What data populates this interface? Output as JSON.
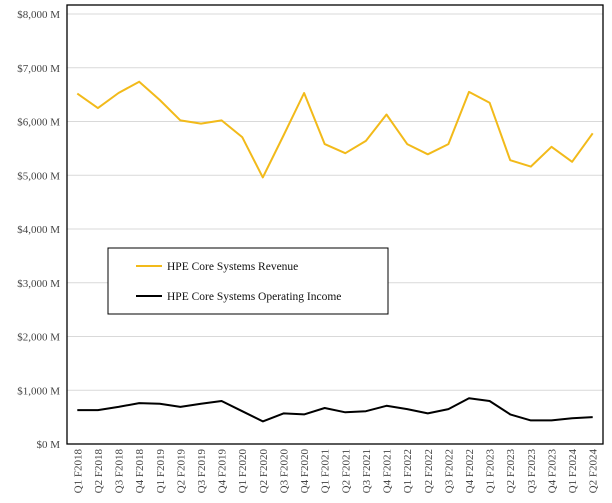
{
  "chart_data": {
    "type": "line",
    "title": "",
    "xlabel": "",
    "ylabel": "",
    "ylim": [
      0,
      8000
    ],
    "y_ticks": [
      "$0 M",
      "$1,000 M",
      "$2,000 M",
      "$3,000 M",
      "$4,000 M",
      "$5,000 M",
      "$6,000 M",
      "$7,000 M",
      "$8,000 M"
    ],
    "y_tick_values": [
      0,
      1000,
      2000,
      3000,
      4000,
      5000,
      6000,
      7000,
      8000
    ],
    "grid": true,
    "legend_position": "center-left",
    "categories": [
      "Q1 F2018",
      "Q2 F2018",
      "Q3 F2018",
      "Q4 F2018",
      "Q1 F2019",
      "Q2 F2019",
      "Q3 F2019",
      "Q4 F2019",
      "Q1 F2020",
      "Q2 F2020",
      "Q3 F2020",
      "Q4 F2020",
      "Q1 F2021",
      "Q2 F2021",
      "Q3 F2021",
      "Q4 F2021",
      "Q1 F2022",
      "Q2 F2022",
      "Q3 F2022",
      "Q4 F2022",
      "Q1 F2023",
      "Q2 F2023",
      "Q3 F2023",
      "Q4 F2023",
      "Q1 F2024",
      "Q2 F2024"
    ],
    "series": [
      {
        "name": "HPE Core Systems Revenue",
        "color": "#F2BA1A",
        "values": [
          6520,
          6250,
          6530,
          6740,
          6400,
          6020,
          5960,
          6020,
          5710,
          4960,
          5740,
          6530,
          5580,
          5410,
          5640,
          6130,
          5580,
          5390,
          5580,
          6550,
          6350,
          5280,
          5160,
          5530,
          5250,
          5780
        ]
      },
      {
        "name": "HPE Core Systems Operating Income",
        "color": "#000000",
        "values": [
          630,
          630,
          690,
          760,
          750,
          690,
          750,
          800,
          610,
          420,
          570,
          550,
          670,
          590,
          610,
          710,
          650,
          570,
          650,
          850,
          800,
          550,
          440,
          440,
          480,
          500
        ]
      }
    ]
  }
}
